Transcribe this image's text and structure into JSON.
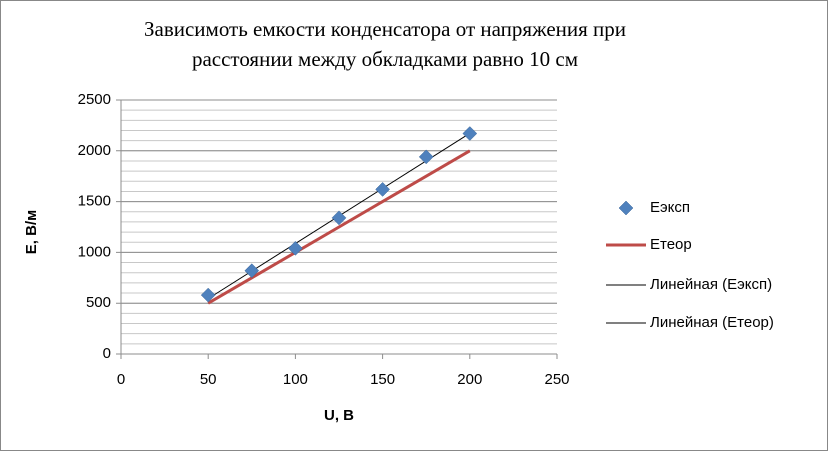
{
  "chart_data": {
    "type": "scatter",
    "title": [
      "Зависимоть емкости конденсатора от напряжения при",
      "расстоянии между обкладками равно 10 см"
    ],
    "x_label": "U, В",
    "y_label": "Е, В/м",
    "xlim": [
      0,
      250
    ],
    "xticks": [
      0,
      50,
      100,
      150,
      200,
      250
    ],
    "ylim": [
      0,
      2500
    ],
    "yticks": [
      0,
      500,
      1000,
      1500,
      2000,
      2500
    ],
    "grid": true,
    "minor_grid_step": 100,
    "legend": "right",
    "series": [
      {
        "name": "Еэксп",
        "style": "marker",
        "color": "#4f81bd",
        "x": [
          50,
          75,
          100,
          125,
          150,
          175,
          200
        ],
        "values": [
          580,
          820,
          1040,
          1340,
          1620,
          1940,
          2170
        ]
      },
      {
        "name": "Етеор",
        "style": "line",
        "color": "#be4b48",
        "x": [
          50,
          75,
          100,
          125,
          150,
          175,
          200
        ],
        "values": [
          500,
          750,
          1000,
          1250,
          1500,
          1750,
          2000
        ]
      },
      {
        "name": "Линейная (Еэксп)",
        "style": "thin",
        "color": "#000000",
        "x": [
          50,
          200
        ],
        "values": [
          545,
          2172
        ]
      },
      {
        "name": "Линейная (Етеор)",
        "style": "thin",
        "color": "#000000",
        "x": [
          50,
          200
        ],
        "values": [
          500,
          2000
        ]
      }
    ]
  }
}
